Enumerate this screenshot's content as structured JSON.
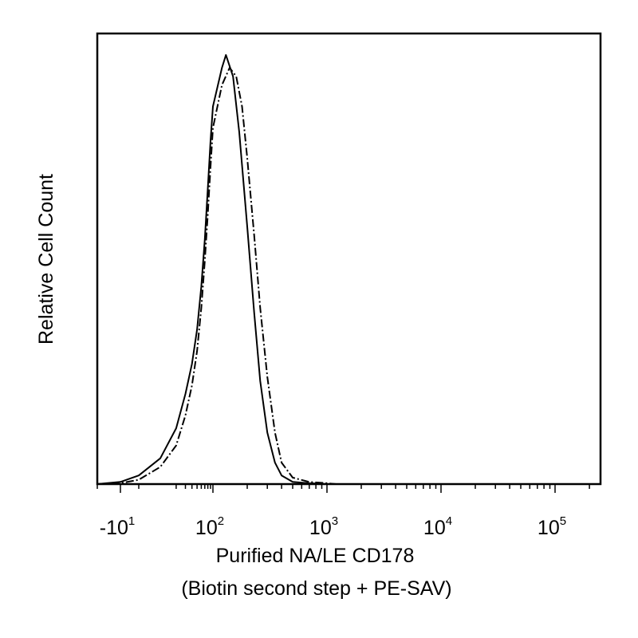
{
  "chart_data": {
    "type": "line",
    "xscale": "logicle",
    "xlabel": "Purified NA/LE CD178",
    "xlabel_line2": "(Biotin second step + PE-SAV)",
    "ylabel": "Relative Cell Count",
    "xticks": [
      {
        "value": -10,
        "base": "-10",
        "exp": "1"
      },
      {
        "value": 100,
        "base": "10",
        "exp": "2"
      },
      {
        "value": 1000,
        "base": "10",
        "exp": "3"
      },
      {
        "value": 10000,
        "base": "10",
        "exp": "4"
      },
      {
        "value": 100000,
        "base": "10",
        "exp": "5"
      }
    ],
    "xlim": [
      -20,
      250000
    ],
    "ylim": [
      0,
      1.05
    ],
    "series": [
      {
        "style": "solid",
        "color": "#000000",
        "x": [
          -20,
          -10,
          0,
          10,
          20,
          30,
          40,
          50,
          60,
          70,
          80,
          90,
          100,
          120,
          130,
          150,
          170,
          200,
          230,
          260,
          300,
          350,
          400,
          500,
          700,
          1000
        ],
        "y": [
          0.0,
          0.005,
          0.02,
          0.06,
          0.13,
          0.21,
          0.28,
          0.36,
          0.46,
          0.57,
          0.69,
          0.8,
          0.88,
          0.97,
          1.0,
          0.95,
          0.82,
          0.6,
          0.4,
          0.24,
          0.12,
          0.05,
          0.02,
          0.005,
          0.002,
          0.0
        ]
      },
      {
        "style": "dash-dot",
        "color": "#000000",
        "x": [
          -20,
          -10,
          0,
          10,
          20,
          30,
          40,
          50,
          60,
          70,
          80,
          90,
          100,
          120,
          140,
          160,
          180,
          200,
          230,
          260,
          300,
          350,
          400,
          500,
          700,
          1000,
          1200
        ],
        "y": [
          0.0,
          0.002,
          0.01,
          0.04,
          0.09,
          0.16,
          0.23,
          0.31,
          0.41,
          0.52,
          0.63,
          0.74,
          0.83,
          0.93,
          0.97,
          0.95,
          0.88,
          0.76,
          0.58,
          0.41,
          0.25,
          0.12,
          0.05,
          0.015,
          0.005,
          0.002,
          0.0
        ]
      }
    ]
  }
}
